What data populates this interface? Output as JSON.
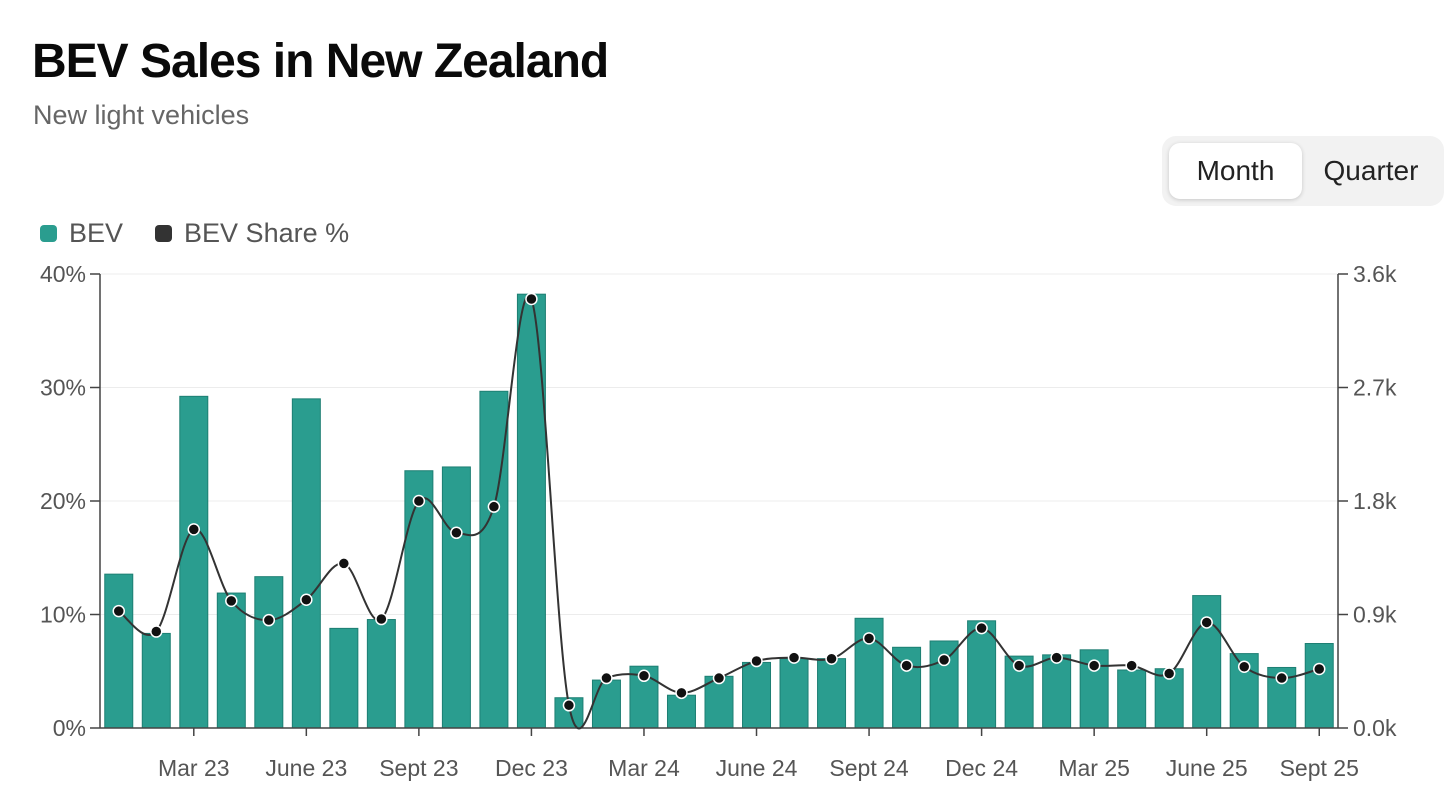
{
  "header": {
    "title": "BEV Sales in New Zealand",
    "subtitle": "New light vehicles"
  },
  "toggle": {
    "options": [
      {
        "label": "Month",
        "active": true
      },
      {
        "label": "Quarter",
        "active": false
      }
    ]
  },
  "legend": [
    {
      "label": "BEV",
      "color": "#2a9d8f"
    },
    {
      "label": "BEV Share %",
      "color": "#333333"
    }
  ],
  "chart_data": {
    "type": "bar",
    "title": "BEV Sales in New Zealand",
    "subtitle": "New light vehicles",
    "categories": [
      "Jan 23",
      "Feb 23",
      "Mar 23",
      "Apr 23",
      "May 23",
      "June 23",
      "Jul 23",
      "Aug 23",
      "Sept 23",
      "Oct 23",
      "Nov 23",
      "Dec 23",
      "Jan 24",
      "Feb 24",
      "Mar 24",
      "Apr 24",
      "May 24",
      "June 24",
      "Jul 24",
      "Aug 24",
      "Sept 24",
      "Oct 24",
      "Nov 24",
      "Dec 24",
      "Jan 25",
      "Feb 25",
      "Mar 25",
      "Apr 25",
      "May 25",
      "June 25",
      "Jul 25",
      "Aug 25",
      "Sept 25"
    ],
    "x_tick_labels": [
      {
        "index": 2,
        "label": "Mar 23"
      },
      {
        "index": 5,
        "label": "June 23"
      },
      {
        "index": 8,
        "label": "Sept 23"
      },
      {
        "index": 11,
        "label": "Dec 23"
      },
      {
        "index": 14,
        "label": "Mar 24"
      },
      {
        "index": 17,
        "label": "June 24"
      },
      {
        "index": 20,
        "label": "Sept 24"
      },
      {
        "index": 23,
        "label": "Dec 24"
      },
      {
        "index": 26,
        "label": "Mar 25"
      },
      {
        "index": 29,
        "label": "June 25"
      },
      {
        "index": 32,
        "label": "Sept 25"
      }
    ],
    "series": [
      {
        "name": "BEV",
        "type": "bar",
        "axis": "right",
        "color": "#2a9d8f",
        "values": [
          1220,
          750,
          2630,
          1070,
          1200,
          2610,
          790,
          860,
          2040,
          2070,
          2670,
          3440,
          240,
          380,
          490,
          260,
          410,
          520,
          550,
          550,
          870,
          640,
          690,
          850,
          570,
          580,
          620,
          460,
          470,
          1050,
          590,
          480,
          670
        ]
      },
      {
        "name": "BEV Share %",
        "type": "line",
        "axis": "left",
        "color": "#333333",
        "values": [
          10.3,
          8.5,
          17.5,
          11.2,
          9.5,
          11.3,
          14.5,
          9.6,
          20.0,
          17.2,
          19.5,
          37.8,
          2.0,
          4.4,
          4.6,
          3.1,
          4.4,
          5.9,
          6.2,
          6.1,
          7.9,
          5.5,
          6.0,
          8.8,
          5.5,
          6.2,
          5.5,
          5.5,
          4.8,
          9.3,
          5.4,
          4.4,
          5.2
        ]
      }
    ],
    "y_left": {
      "ticks": [
        "0%",
        "10%",
        "20%",
        "30%",
        "40%"
      ],
      "min": 0,
      "max": 40
    },
    "y_right": {
      "ticks": [
        "0.0k",
        "0.9k",
        "1.8k",
        "2.7k",
        "3.6k"
      ],
      "min": 0,
      "max": 3600
    },
    "grid": true,
    "legend_position": "top-left"
  }
}
